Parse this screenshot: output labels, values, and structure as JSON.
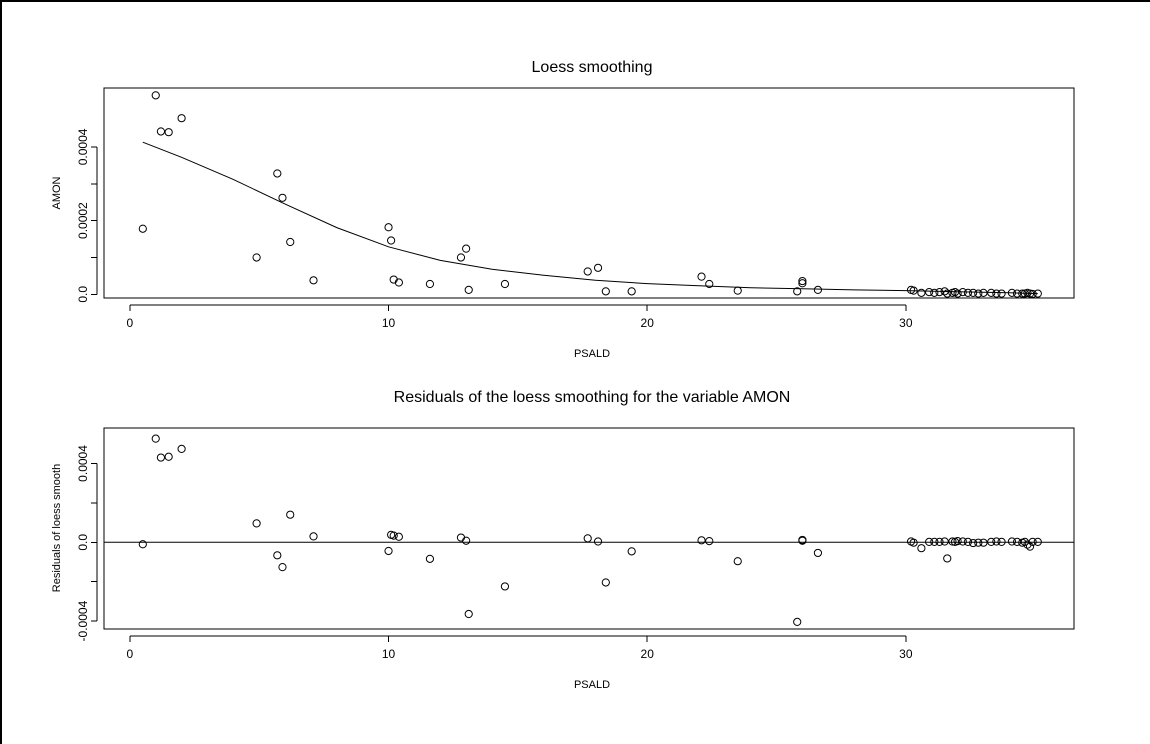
{
  "chart_data": [
    {
      "type": "scatter",
      "title": "Loess smoothing",
      "xlabel": "PSALD",
      "ylabel": "AMON",
      "xlim": [
        -1,
        36.5
      ],
      "ylim": [
        -1e-05,
        0.00056
      ],
      "xticks": [
        0,
        10,
        20,
        30
      ],
      "xtick_labels": [
        "0",
        "10",
        "20",
        "30"
      ],
      "yticks": [
        0,
        0.0002,
        0.0004
      ],
      "ytick_labels": [
        "0.0",
        "0.0002",
        "0.0004"
      ],
      "grid": false,
      "points": [
        [
          0.5,
          0.000178
        ],
        [
          1.0,
          0.00054
        ],
        [
          1.2,
          0.000442
        ],
        [
          1.5,
          0.00044
        ],
        [
          2.0,
          0.000478
        ],
        [
          4.9,
          0.0001
        ],
        [
          5.7,
          0.000328
        ],
        [
          5.9,
          0.000262
        ],
        [
          6.2,
          0.000142
        ],
        [
          7.1,
          3.8e-05
        ],
        [
          10.0,
          0.000182
        ],
        [
          10.1,
          0.000146
        ],
        [
          10.2,
          4e-05
        ],
        [
          10.4,
          3.2e-05
        ],
        [
          11.6,
          2.8e-05
        ],
        [
          12.8,
          0.0001
        ],
        [
          13.0,
          0.000124
        ],
        [
          13.1,
          1.2e-05
        ],
        [
          14.5,
          2.8e-05
        ],
        [
          17.7,
          6.2e-05
        ],
        [
          18.1,
          7.2e-05
        ],
        [
          18.4,
          8e-06
        ],
        [
          19.4,
          8e-06
        ],
        [
          22.1,
          4.8e-05
        ],
        [
          22.4,
          2.8e-05
        ],
        [
          23.5,
          1e-05
        ],
        [
          25.8,
          8e-06
        ],
        [
          26.0,
          3.6e-05
        ],
        [
          26.0,
          3e-05
        ],
        [
          26.6,
          1.2e-05
        ],
        [
          30.2,
          1.2e-05
        ],
        [
          30.3,
          1e-05
        ],
        [
          30.6,
          4e-06
        ],
        [
          30.9,
          6e-06
        ],
        [
          31.1,
          4e-06
        ],
        [
          31.3,
          6e-06
        ],
        [
          31.5,
          8e-06
        ],
        [
          31.6,
          2e-06
        ],
        [
          31.8,
          4e-06
        ],
        [
          31.9,
          6e-06
        ],
        [
          32.0,
          2e-06
        ],
        [
          32.2,
          6e-06
        ],
        [
          32.4,
          4e-06
        ],
        [
          32.6,
          4e-06
        ],
        [
          32.8,
          2e-06
        ],
        [
          33.0,
          4e-06
        ],
        [
          33.3,
          4e-06
        ],
        [
          33.5,
          2e-06
        ],
        [
          33.7,
          2e-06
        ],
        [
          34.1,
          4e-06
        ],
        [
          34.3,
          2e-06
        ],
        [
          34.5,
          2e-06
        ],
        [
          34.6,
          2e-06
        ],
        [
          34.7,
          4e-06
        ],
        [
          34.8,
          2e-06
        ],
        [
          34.9,
          1e-06
        ],
        [
          35.1,
          2e-06
        ]
      ],
      "smooth_curve": [
        [
          0.5,
          0.000413
        ],
        [
          2,
          0.000372
        ],
        [
          4,
          0.000312
        ],
        [
          6,
          0.000245
        ],
        [
          8,
          0.000181
        ],
        [
          10,
          0.000129
        ],
        [
          12,
          9.2e-05
        ],
        [
          14,
          6.8e-05
        ],
        [
          16,
          5.2e-05
        ],
        [
          18,
          3.8e-05
        ],
        [
          20,
          2.9e-05
        ],
        [
          22,
          2.3e-05
        ],
        [
          24,
          1.8e-05
        ],
        [
          26,
          1.5e-05
        ],
        [
          28,
          1.2e-05
        ],
        [
          30,
          1e-05
        ],
        [
          32,
          7e-06
        ],
        [
          34,
          4e-06
        ],
        [
          35.1,
          2e-06
        ]
      ]
    },
    {
      "type": "scatter",
      "title": "Residuals of the loess smoothing for the variable  AMON",
      "xlabel": "PSALD",
      "ylabel": "Residuals of loess smooth",
      "xlim": [
        -1,
        36.5
      ],
      "ylim": [
        -0.00044,
        0.00058
      ],
      "xticks": [
        0,
        10,
        20,
        30
      ],
      "xtick_labels": [
        "0",
        "10",
        "20",
        "30"
      ],
      "yticks": [
        -0.0004,
        0,
        0.0004
      ],
      "ytick_labels": [
        "-0.0004",
        "0.0",
        "0.0004"
      ],
      "hline": 0,
      "grid": false,
      "points": [
        [
          0.5,
          -1e-05
        ],
        [
          1.0,
          0.000526
        ],
        [
          1.2,
          0.00043
        ],
        [
          1.5,
          0.000434
        ],
        [
          2.0,
          0.000474
        ],
        [
          4.9,
          9.6e-05
        ],
        [
          5.7,
          -6.6e-05
        ],
        [
          5.9,
          -0.000126
        ],
        [
          6.2,
          0.00014
        ],
        [
          7.1,
          3e-05
        ],
        [
          10.0,
          -4.4e-05
        ],
        [
          10.1,
          3.8e-05
        ],
        [
          10.2,
          3.4e-05
        ],
        [
          10.4,
          2.8e-05
        ],
        [
          11.6,
          -8.4e-05
        ],
        [
          12.8,
          2.4e-05
        ],
        [
          13.0,
          8e-06
        ],
        [
          13.1,
          -0.000364
        ],
        [
          14.5,
          -0.000224
        ],
        [
          17.7,
          2e-05
        ],
        [
          18.1,
          4e-06
        ],
        [
          18.4,
          -0.000204
        ],
        [
          19.4,
          -4.6e-05
        ],
        [
          22.1,
          1e-05
        ],
        [
          22.4,
          6e-06
        ],
        [
          23.5,
          -9.6e-05
        ],
        [
          25.8,
          -0.000404
        ],
        [
          26.0,
          1.2e-05
        ],
        [
          26.0,
          8e-06
        ],
        [
          26.6,
          -5.4e-05
        ],
        [
          30.2,
          4e-06
        ],
        [
          30.3,
          -2e-06
        ],
        [
          30.6,
          -3e-05
        ],
        [
          30.9,
          2e-06
        ],
        [
          31.1,
          2e-06
        ],
        [
          31.3,
          2e-06
        ],
        [
          31.5,
          4e-06
        ],
        [
          31.6,
          -8.2e-05
        ],
        [
          31.8,
          4e-06
        ],
        [
          31.9,
          2e-06
        ],
        [
          32.0,
          6e-06
        ],
        [
          32.2,
          4e-06
        ],
        [
          32.4,
          2e-06
        ],
        [
          32.6,
          -4e-06
        ],
        [
          32.8,
          -2e-06
        ],
        [
          33.0,
          -2e-06
        ],
        [
          33.3,
          2e-06
        ],
        [
          33.5,
          4e-06
        ],
        [
          33.7,
          2e-06
        ],
        [
          34.1,
          4e-06
        ],
        [
          34.3,
          2e-06
        ],
        [
          34.5,
          -2e-06
        ],
        [
          34.6,
          2e-06
        ],
        [
          34.7,
          -1.2e-05
        ],
        [
          34.8,
          -2.2e-05
        ],
        [
          34.9,
          2e-06
        ],
        [
          35.1,
          2e-06
        ]
      ]
    }
  ]
}
